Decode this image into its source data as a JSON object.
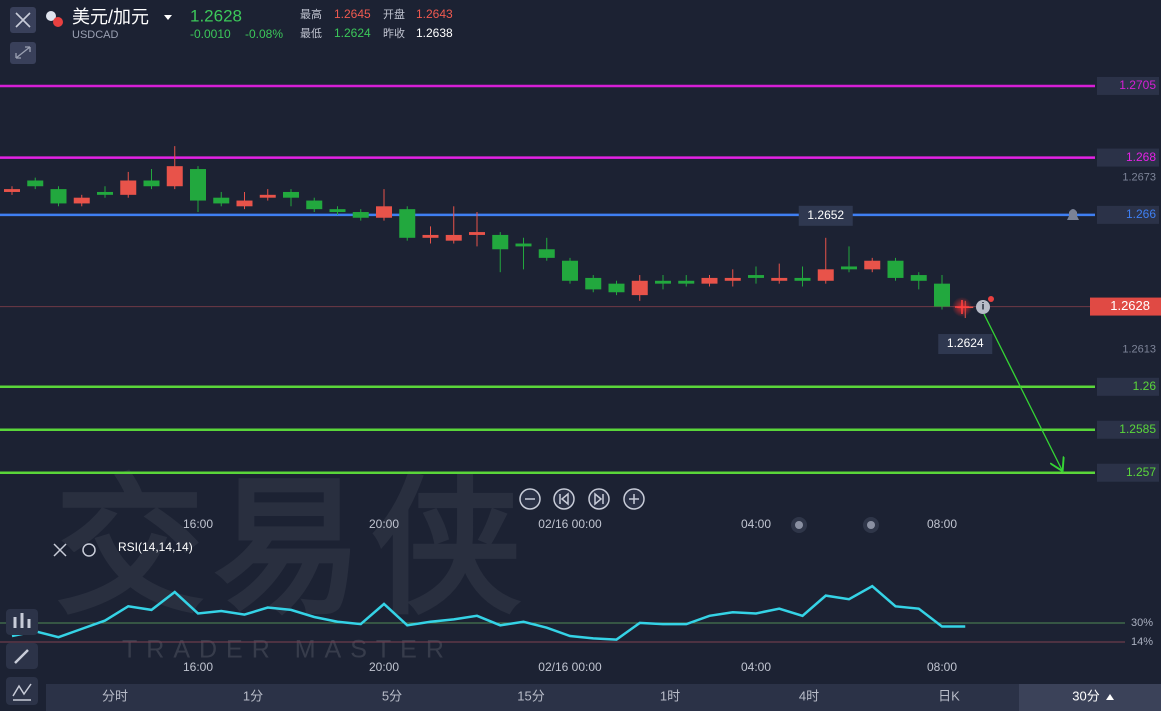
{
  "header": {
    "pair": "美元/加元",
    "symbol": "USDCAD",
    "price": "1.2628",
    "change": "-0.0010",
    "change_pct": "-0.08%",
    "high_label": "最高",
    "high": "1.2645",
    "open_label": "开盘",
    "open": "1.2643",
    "low_label": "最低",
    "low": "1.2624",
    "prev_close_label": "昨收",
    "prev_close": "1.2638"
  },
  "watermark": {
    "brand": "交易侠",
    "brand_en": "TRADER MASTER"
  },
  "chart_data": {
    "type": "candlestick",
    "ylim": [
      1.2557,
      1.2735
    ],
    "yticks": [
      1.2673,
      1.2613
    ],
    "last_price": 1.2628,
    "up_color": "#e8534a",
    "down_color": "#22a83e",
    "levels": [
      {
        "value": 1.2705,
        "color": "#d61fd6"
      },
      {
        "value": 1.268,
        "color": "#e422e4"
      },
      {
        "value": 1.266,
        "color": "#3f7ff2"
      },
      {
        "value": 1.26,
        "color": "#5ad63a"
      },
      {
        "value": 1.2585,
        "color": "#5ad63a"
      },
      {
        "value": 1.257,
        "color": "#5ad63a"
      }
    ],
    "categories": [
      null,
      null,
      null,
      null,
      null,
      null,
      null,
      null,
      "16:00",
      null,
      null,
      null,
      null,
      null,
      null,
      null,
      "20:00",
      null,
      null,
      null,
      null,
      null,
      null,
      null,
      "02/16 00:00",
      null,
      null,
      null,
      null,
      null,
      null,
      null,
      "04:00",
      null,
      null,
      null,
      null,
      null,
      null,
      null,
      "08:00",
      null
    ],
    "open": [
      1.2668,
      1.2672,
      1.2669,
      1.2664,
      1.2668,
      1.2667,
      1.2672,
      1.267,
      1.2676,
      1.2666,
      1.2663,
      1.2666,
      1.2668,
      1.2665,
      1.2662,
      1.2661,
      1.2659,
      1.2662,
      1.2652,
      1.2651,
      1.2653,
      1.2653,
      1.265,
      1.2648,
      1.2644,
      1.2638,
      1.2636,
      1.2632,
      1.2637,
      1.2637,
      1.2636,
      1.2637,
      1.2639,
      1.2637,
      1.2638,
      1.2637,
      1.2642,
      1.2641,
      1.2644,
      1.2639,
      1.2636,
      1.2628
    ],
    "high": [
      1.267,
      1.2673,
      1.267,
      1.2667,
      1.267,
      1.2675,
      1.2676,
      1.2684,
      1.2677,
      1.2668,
      1.2668,
      1.2669,
      1.2669,
      1.2666,
      1.2663,
      1.2662,
      1.2669,
      1.2663,
      1.2656,
      1.2663,
      1.2661,
      1.2654,
      1.2652,
      1.2652,
      1.2645,
      1.2639,
      1.2637,
      1.2639,
      1.2639,
      1.2639,
      1.2639,
      1.2641,
      1.2642,
      1.2643,
      1.2642,
      1.2652,
      1.2649,
      1.2645,
      1.2645,
      1.264,
      1.2639,
      1.263
    ],
    "low": [
      1.2667,
      1.2669,
      1.2663,
      1.2663,
      1.2666,
      1.2666,
      1.2669,
      1.2669,
      1.2661,
      1.2663,
      1.2662,
      1.2665,
      1.2663,
      1.2661,
      1.266,
      1.2658,
      1.2658,
      1.2651,
      1.265,
      1.265,
      1.2649,
      1.264,
      1.2641,
      1.2644,
      1.2636,
      1.2633,
      1.2632,
      1.263,
      1.2634,
      1.2635,
      1.2635,
      1.2635,
      1.2636,
      1.2636,
      1.2635,
      1.2636,
      1.264,
      1.264,
      1.2637,
      1.2634,
      1.2627,
      1.2624
    ],
    "close": [
      1.2669,
      1.267,
      1.2664,
      1.2666,
      1.2667,
      1.2672,
      1.267,
      1.2677,
      1.2665,
      1.2664,
      1.2665,
      1.2667,
      1.2666,
      1.2662,
      1.2661,
      1.2659,
      1.2663,
      1.2652,
      1.2653,
      1.2653,
      1.2654,
      1.2648,
      1.2649,
      1.2645,
      1.2637,
      1.2634,
      1.2633,
      1.2637,
      1.2636,
      1.2636,
      1.2638,
      1.2638,
      1.2638,
      1.2638,
      1.2637,
      1.2641,
      1.2641,
      1.2644,
      1.2638,
      1.2637,
      1.2628,
      1.2628
    ],
    "rsi": {
      "name": "RSI(14,14,14)",
      "color": "#35d3e6",
      "values": [
        19,
        23,
        18,
        25,
        32,
        44,
        41,
        56,
        38,
        40,
        37,
        43,
        41,
        35,
        31,
        29,
        46,
        28,
        31,
        33,
        36,
        28,
        31,
        26,
        19,
        17,
        16,
        30,
        29,
        29,
        36,
        39,
        38,
        42,
        36,
        53,
        50,
        61,
        44,
        42,
        27,
        27
      ],
      "ylim": [
        3,
        83
      ],
      "yticks": [
        {
          "value": 30,
          "label": "30%",
          "color": "#4f8a55"
        },
        {
          "value": 14,
          "label": "14%",
          "color": "#7e4152"
        }
      ]
    }
  },
  "indicator_bar": {
    "timeframes": [
      "分时",
      "1分",
      "5分",
      "15分",
      "1时",
      "4时",
      "日K"
    ],
    "active": "30分"
  }
}
